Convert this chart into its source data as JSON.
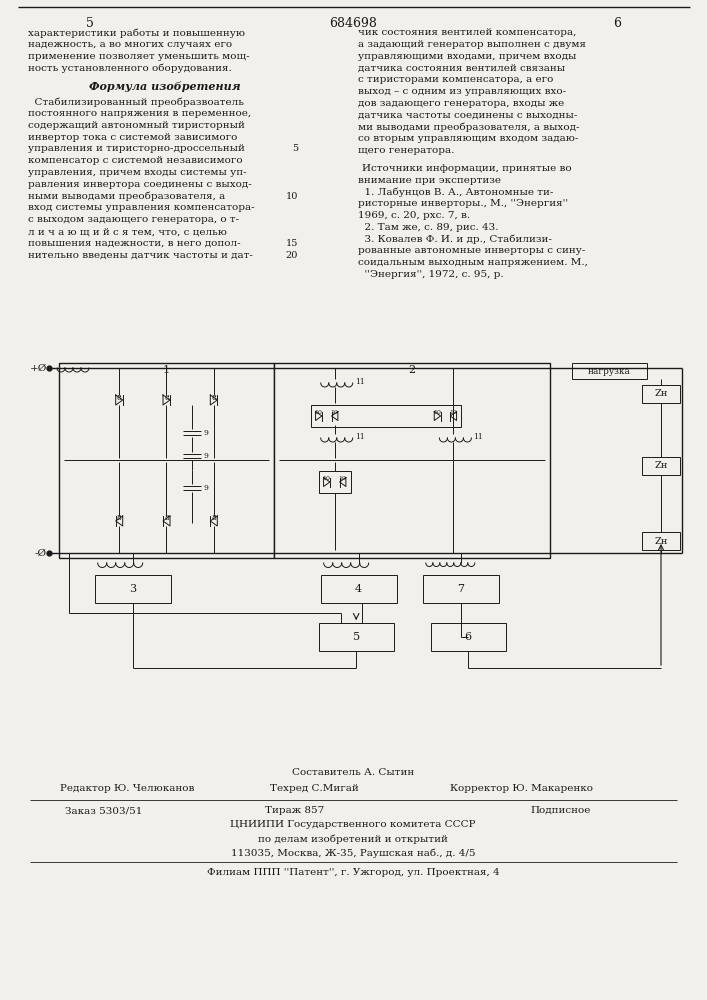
{
  "page_number_left": "5",
  "page_number_center": "684698",
  "page_number_right": "6",
  "background_color": "#f2f0eb",
  "text_color": "#1a1a1a",
  "left_col_lines": [
    "характеристики работы и повышенную",
    "надежность, а во многих случаях его",
    "применение позволяет уменьшить мощ-",
    "ность установленного оборудования."
  ],
  "formula_title": "Формула изобретения",
  "formula_lines": [
    "  Стабилизированный преобразвоатель",
    "постоянного напряжения в переменное,",
    "содержащий автономный тиристорный",
    "инвертор тока с системой зависимого",
    "управления и тиристорно-дроссельный",
    "компенсатор с системой независимого",
    "управления, причем входы системы уп-",
    "равления инвертора соединены с выход-",
    "ными выводами преобразователя, а",
    "вход системы управления компенсатора-",
    "с выходом задающего генератора, о т-",
    "л и ч а ю щ и й с я тем, что, с целью",
    "повышения надежности, в него допол-",
    "нительно введены датчик частоты и дат-"
  ],
  "right_col_lines": [
    "чик состояния вентилей компенсатора,",
    "а задающий генератор выполнен с двумя",
    "управляющими входами, причем входы",
    "датчика состояния вентилей связаны",
    "с тиристорами компенсатора, а его",
    "выход – с одним из управляющих вхо-",
    "дов задающего генератора, входы же",
    "датчика частоты соединены с выходны-",
    "ми выводами преобразователя, а выход-",
    "со вторым управляющим входом задаю-",
    "щего генератора."
  ],
  "sources_header": "Источники информации, принятые во",
  "sources_lines": [
    "внимание при экспертизе",
    "  1. Лабунцов В. А., Автономные ти-",
    "ристорные инверторы., М., ''Энергия''",
    "1969, с. 20, рхс. 7, в.",
    "  2. Там же, с. 89, рис. 43.",
    "  3. Ковалев Ф. И. и др., Стабилизи-",
    "рованные автономные инверторы с сину-",
    "соидальным выходным напряжением. М.,",
    "  ''Энергия'', 1972, с. 95, р."
  ],
  "bottom_composer": "Составитель А. Сытин",
  "bottom_editor": "Редактор Ю. Челюканов",
  "bottom_techred": "Техред С.Мигай",
  "bottom_corrector": "Корректор Ю. Макаренко",
  "bottom_order": "Заказ 5303/51",
  "bottom_tirazh": "Тираж 857",
  "bottom_podp": "Подписное",
  "bottom_inst": "ЦНИИПИ Государственного комитета СССР",
  "bottom_inst2": "по делам изобретений и открытий",
  "bottom_addr": "113035, Москва, Ж-35, Раушская наб., д. 4/5",
  "bottom_filial": "Филиам ППП ''Патент'', г. Ужгород, ул. Проектная, 4"
}
